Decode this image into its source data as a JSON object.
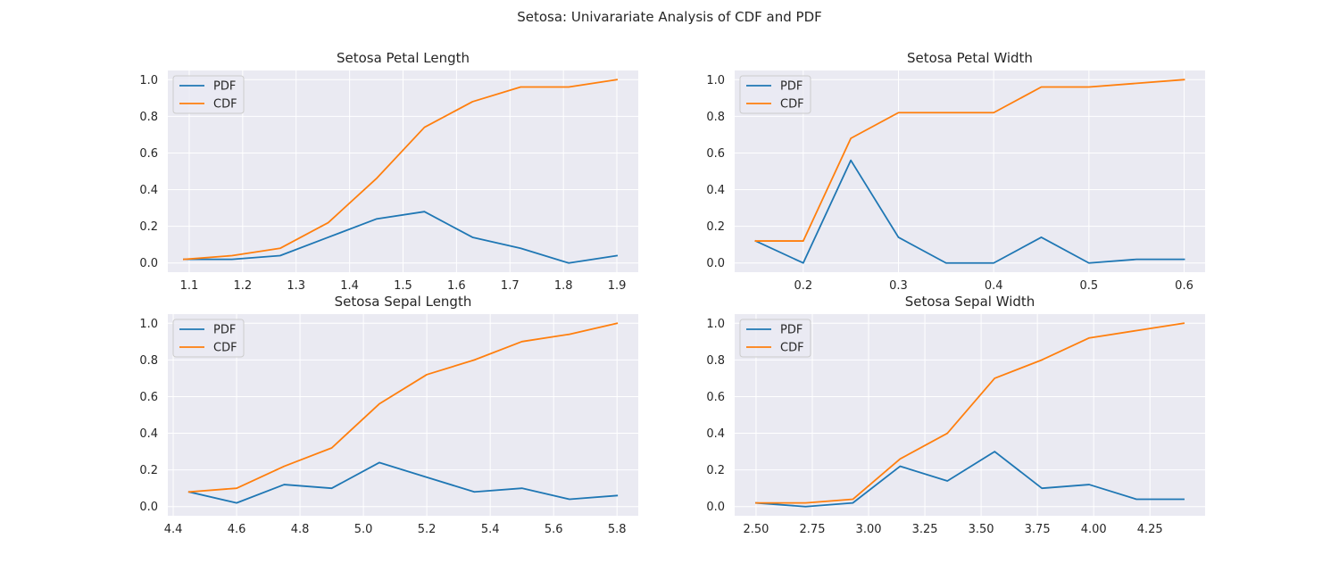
{
  "figure": {
    "suptitle": "Setosa: Univarariate Analysis of CDF and PDF"
  },
  "colors": {
    "axes_bg": "#eaeaf2",
    "grid": "#ffffff",
    "pdf": "#1f77b4",
    "cdf": "#ff7f0e",
    "text": "#262626"
  },
  "chart_data": [
    {
      "type": "line",
      "title": "Setosa Petal Length",
      "xlabel": "",
      "ylabel": "",
      "xlim": [
        1.06,
        1.94
      ],
      "ylim": [
        -0.05,
        1.05
      ],
      "xticks": [
        1.1,
        1.2,
        1.3,
        1.4,
        1.5,
        1.6,
        1.7,
        1.8,
        1.9
      ],
      "xtick_labels": [
        "1.1",
        "1.2",
        "1.3",
        "1.4",
        "1.5",
        "1.6",
        "1.7",
        "1.8",
        "1.9"
      ],
      "yticks": [
        0.0,
        0.2,
        0.4,
        0.6,
        0.8,
        1.0
      ],
      "ytick_labels": [
        "0.0",
        "0.2",
        "0.4",
        "0.6",
        "0.8",
        "1.0"
      ],
      "grid": true,
      "legend": "top-left",
      "x": [
        1.09,
        1.18,
        1.27,
        1.36,
        1.45,
        1.54,
        1.63,
        1.72,
        1.81,
        1.9
      ],
      "series": [
        {
          "name": "PDF",
          "values": [
            0.02,
            0.02,
            0.04,
            0.14,
            0.24,
            0.28,
            0.14,
            0.08,
            0.0,
            0.04
          ]
        },
        {
          "name": "CDF",
          "values": [
            0.02,
            0.04,
            0.08,
            0.22,
            0.46,
            0.74,
            0.88,
            0.96,
            0.96,
            1.0
          ]
        }
      ]
    },
    {
      "type": "line",
      "title": "Setosa Petal Width",
      "xlabel": "",
      "ylabel": "",
      "xlim": [
        0.128,
        0.622
      ],
      "ylim": [
        -0.05,
        1.05
      ],
      "xticks": [
        0.2,
        0.3,
        0.4,
        0.5,
        0.6
      ],
      "xtick_labels": [
        "0.2",
        "0.3",
        "0.4",
        "0.5",
        "0.6"
      ],
      "yticks": [
        0.0,
        0.2,
        0.4,
        0.6,
        0.8,
        1.0
      ],
      "ytick_labels": [
        "0.0",
        "0.2",
        "0.4",
        "0.6",
        "0.8",
        "1.0"
      ],
      "grid": true,
      "legend": "top-left",
      "x": [
        0.15,
        0.2,
        0.25,
        0.3,
        0.35,
        0.4,
        0.45,
        0.5,
        0.55,
        0.6
      ],
      "series": [
        {
          "name": "PDF",
          "values": [
            0.12,
            0.0,
            0.56,
            0.14,
            0.0,
            0.0,
            0.14,
            0.0,
            0.02,
            0.02
          ]
        },
        {
          "name": "CDF",
          "values": [
            0.12,
            0.12,
            0.68,
            0.82,
            0.82,
            0.82,
            0.96,
            0.96,
            0.98,
            1.0
          ]
        }
      ]
    },
    {
      "type": "line",
      "title": "Setosa Sepal Length",
      "xlabel": "",
      "ylabel": "",
      "xlim": [
        4.383,
        5.867
      ],
      "ylim": [
        -0.05,
        1.05
      ],
      "xticks": [
        4.4,
        4.6,
        4.8,
        5.0,
        5.2,
        5.4,
        5.6,
        5.8
      ],
      "xtick_labels": [
        "4.4",
        "4.6",
        "4.8",
        "5.0",
        "5.2",
        "5.4",
        "5.6",
        "5.8"
      ],
      "yticks": [
        0.0,
        0.2,
        0.4,
        0.6,
        0.8,
        1.0
      ],
      "ytick_labels": [
        "0.0",
        "0.2",
        "0.4",
        "0.6",
        "0.8",
        "1.0"
      ],
      "grid": true,
      "legend": "top-left",
      "x": [
        4.45,
        4.6,
        4.75,
        4.9,
        5.05,
        5.2,
        5.35,
        5.5,
        5.65,
        5.8
      ],
      "series": [
        {
          "name": "PDF",
          "values": [
            0.08,
            0.02,
            0.12,
            0.1,
            0.24,
            0.16,
            0.08,
            0.1,
            0.04,
            0.06
          ]
        },
        {
          "name": "CDF",
          "values": [
            0.08,
            0.1,
            0.22,
            0.32,
            0.56,
            0.72,
            0.8,
            0.9,
            0.94,
            1.0
          ]
        }
      ]
    },
    {
      "type": "line",
      "title": "Setosa Sepal Width",
      "xlabel": "",
      "ylabel": "",
      "xlim": [
        2.405,
        4.495
      ],
      "ylim": [
        -0.05,
        1.05
      ],
      "xticks": [
        2.5,
        2.75,
        3.0,
        3.25,
        3.5,
        3.75,
        4.0,
        4.25
      ],
      "xtick_labels": [
        "2.50",
        "2.75",
        "3.00",
        "3.25",
        "3.50",
        "3.75",
        "4.00",
        "4.25"
      ],
      "yticks": [
        0.0,
        0.2,
        0.4,
        0.6,
        0.8,
        1.0
      ],
      "ytick_labels": [
        "0.0",
        "0.2",
        "0.4",
        "0.6",
        "0.8",
        "1.0"
      ],
      "grid": true,
      "legend": "top-left",
      "x": [
        2.5,
        2.72,
        2.93,
        3.14,
        3.35,
        3.56,
        3.77,
        3.98,
        4.19,
        4.4
      ],
      "series": [
        {
          "name": "PDF",
          "values": [
            0.02,
            0.0,
            0.02,
            0.22,
            0.14,
            0.3,
            0.1,
            0.12,
            0.04,
            0.04
          ]
        },
        {
          "name": "CDF",
          "values": [
            0.02,
            0.02,
            0.04,
            0.26,
            0.4,
            0.7,
            0.8,
            0.92,
            0.96,
            1.0
          ]
        }
      ]
    }
  ]
}
